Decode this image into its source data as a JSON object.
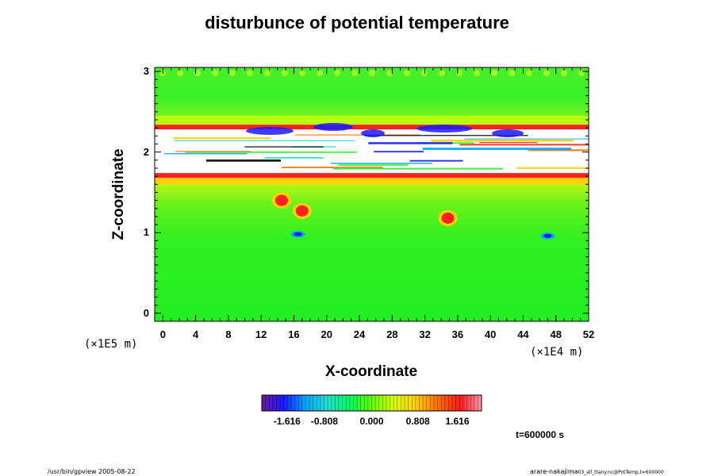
{
  "chart_data": {
    "type": "heatmap",
    "title": "disturbunce of potential temperature",
    "xlabel": "X-coordinate",
    "ylabel": "Z-coordinate",
    "x_scale_note": "(×1E4 m)",
    "y_scale_note": "(×1E5 m)",
    "xlim": [
      -1,
      52
    ],
    "ylim": [
      -0.1,
      3.05
    ],
    "x_ticks": [
      0,
      4,
      8,
      12,
      16,
      20,
      24,
      28,
      32,
      36,
      40,
      44,
      48,
      52
    ],
    "y_ticks": [
      0,
      1,
      2,
      3
    ],
    "colorbar": {
      "ticks": [
        "-1.616",
        "-0.808",
        "0.000",
        "0.808",
        "1.616"
      ],
      "colors": [
        "#6a1b9a",
        "#1a1aff",
        "#00a8ff",
        "#22e0d0",
        "#00ff60",
        "#66ff00",
        "#d8ff00",
        "#ffd000",
        "#ff7000",
        "#ff1a1a",
        "#ff9aa8"
      ]
    },
    "bands": [
      {
        "z": [
          -0.1,
          1.6
        ],
        "description_value": 0.0,
        "color": "#2ef028"
      },
      {
        "z": [
          1.6,
          1.68
        ],
        "description_value": 0.8,
        "color": "#ffd000"
      },
      {
        "z": [
          1.68,
          1.74
        ],
        "description_value": 1.6,
        "color": "#ff2020"
      },
      {
        "z": [
          2.28,
          2.34
        ],
        "description_value": 1.6,
        "color": "#ff2020"
      },
      {
        "z": [
          2.34,
          2.45
        ],
        "description_value": 0.8,
        "color": "#b8ff10"
      },
      {
        "z": [
          2.45,
          3.05
        ],
        "description_value": 0.0,
        "color": "#3cf030"
      }
    ],
    "hotspots": [
      {
        "x": 14.5,
        "z": 1.4,
        "value": 1.6
      },
      {
        "x": 17.0,
        "z": 1.27,
        "value": 1.6
      },
      {
        "x": 34.8,
        "z": 1.18,
        "value": 1.6
      },
      {
        "x": 16.5,
        "z": 0.98,
        "value": -1.2
      },
      {
        "x": 47.0,
        "z": 0.96,
        "value": -1.2
      }
    ],
    "time": "t=600000 s"
  },
  "footer": {
    "left": "/usr/bin/gpview 2005-08-22",
    "right_main": "arare-nakajima",
    "right_small": "03_all_ttany.nc@PotTemp,t=600000"
  }
}
